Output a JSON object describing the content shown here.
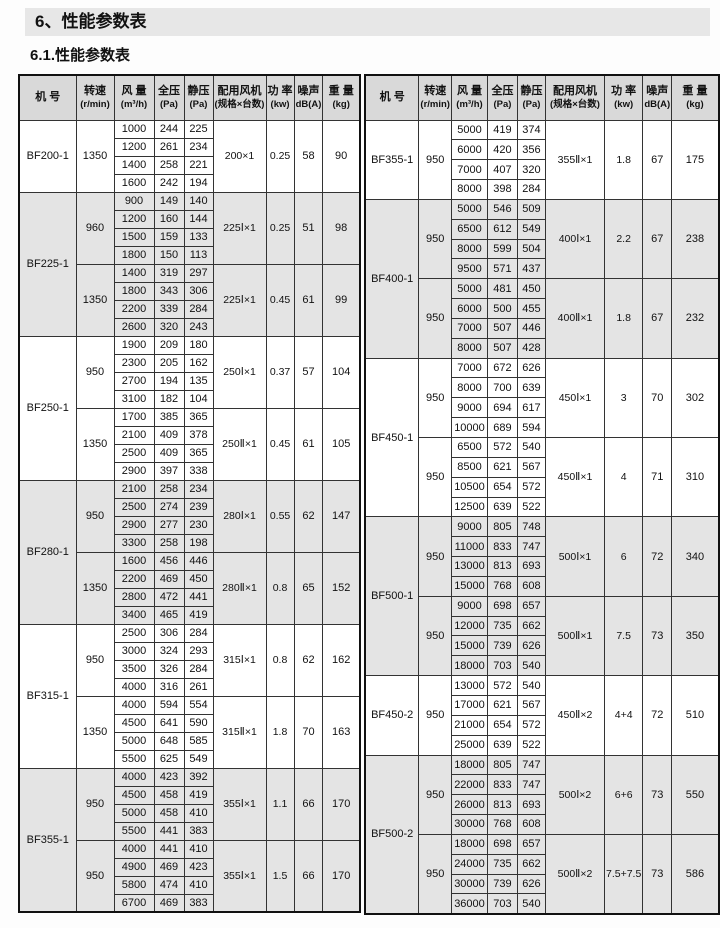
{
  "page": {
    "title": "6、性能参数表",
    "subtitle": "6.1.性能参数表",
    "colors": {
      "title_bar_bg": "#e7e7e7",
      "header_bg": "#d9d9d9",
      "shaded_row_bg": "#e4e4e4"
    }
  },
  "header": [
    {
      "line1": "机 号",
      "line2": ""
    },
    {
      "line1": "转速",
      "line2": "(r/min)"
    },
    {
      "line1": "风 量",
      "line2": "(m³/h)"
    },
    {
      "line1": "全压",
      "line2": "(Pa)"
    },
    {
      "line1": "静压",
      "line2": "(Pa)"
    },
    {
      "line1": "配用风机",
      "line2": "(规格×台数)"
    },
    {
      "line1": "功 率",
      "line2": "(kw)"
    },
    {
      "line1": "噪声",
      "line2": "dB(A)"
    },
    {
      "line1": "重 量",
      "line2": "(kg)"
    }
  ],
  "tables": [
    {
      "name": "left",
      "sections": [
        {
          "model": "BF200-1",
          "shaded": false,
          "groups": [
            {
              "speed": "1350",
              "rows": [
                [
                  "1000",
                  "244",
                  "225"
                ],
                [
                  "1200",
                  "261",
                  "234"
                ],
                [
                  "1400",
                  "258",
                  "221"
                ],
                [
                  "1600",
                  "242",
                  "194"
                ]
              ],
              "fan": "200×1",
              "power": "0.25",
              "noise": "58",
              "weight": "90"
            }
          ]
        },
        {
          "model": "BF225-1",
          "shaded": true,
          "groups": [
            {
              "speed": "960",
              "rows": [
                [
                  "900",
                  "149",
                  "140"
                ],
                [
                  "1200",
                  "160",
                  "144"
                ],
                [
                  "1500",
                  "159",
                  "133"
                ],
                [
                  "1800",
                  "150",
                  "113"
                ]
              ],
              "fan": "225Ⅰ×1",
              "power": "0.25",
              "noise": "51",
              "weight": "98"
            },
            {
              "speed": "1350",
              "rows": [
                [
                  "1400",
                  "319",
                  "297"
                ],
                [
                  "1800",
                  "343",
                  "306"
                ],
                [
                  "2200",
                  "339",
                  "284"
                ],
                [
                  "2600",
                  "320",
                  "243"
                ]
              ],
              "fan": "225Ⅰ×1",
              "power": "0.45",
              "noise": "61",
              "weight": "99"
            }
          ]
        },
        {
          "model": "BF250-1",
          "shaded": false,
          "groups": [
            {
              "speed": "950",
              "rows": [
                [
                  "1900",
                  "209",
                  "180"
                ],
                [
                  "2300",
                  "205",
                  "162"
                ],
                [
                  "2700",
                  "194",
                  "135"
                ],
                [
                  "3100",
                  "182",
                  "104"
                ]
              ],
              "fan": "250Ⅰ×1",
              "power": "0.37",
              "noise": "57",
              "weight": "104"
            },
            {
              "speed": "1350",
              "rows": [
                [
                  "1700",
                  "385",
                  "365"
                ],
                [
                  "2100",
                  "409",
                  "378"
                ],
                [
                  "2500",
                  "409",
                  "365"
                ],
                [
                  "2900",
                  "397",
                  "338"
                ]
              ],
              "fan": "250Ⅱ×1",
              "power": "0.45",
              "noise": "61",
              "weight": "105"
            }
          ]
        },
        {
          "model": "BF280-1",
          "shaded": true,
          "groups": [
            {
              "speed": "950",
              "rows": [
                [
                  "2100",
                  "258",
                  "234"
                ],
                [
                  "2500",
                  "274",
                  "239"
                ],
                [
                  "2900",
                  "277",
                  "230"
                ],
                [
                  "3300",
                  "258",
                  "198"
                ]
              ],
              "fan": "280Ⅰ×1",
              "power": "0.55",
              "noise": "62",
              "weight": "147"
            },
            {
              "speed": "1350",
              "rows": [
                [
                  "1600",
                  "456",
                  "446"
                ],
                [
                  "2200",
                  "469",
                  "450"
                ],
                [
                  "2800",
                  "472",
                  "441"
                ],
                [
                  "3400",
                  "465",
                  "419"
                ]
              ],
              "fan": "280Ⅱ×1",
              "power": "0.8",
              "noise": "65",
              "weight": "152"
            }
          ]
        },
        {
          "model": "BF315-1",
          "shaded": false,
          "groups": [
            {
              "speed": "950",
              "rows": [
                [
                  "2500",
                  "306",
                  "284"
                ],
                [
                  "3000",
                  "324",
                  "293"
                ],
                [
                  "3500",
                  "326",
                  "284"
                ],
                [
                  "4000",
                  "316",
                  "261"
                ]
              ],
              "fan": "315Ⅰ×1",
              "power": "0.8",
              "noise": "62",
              "weight": "162"
            },
            {
              "speed": "1350",
              "rows": [
                [
                  "4000",
                  "594",
                  "554"
                ],
                [
                  "4500",
                  "641",
                  "590"
                ],
                [
                  "5000",
                  "648",
                  "585"
                ],
                [
                  "5500",
                  "625",
                  "549"
                ]
              ],
              "fan": "315Ⅱ×1",
              "power": "1.8",
              "noise": "70",
              "weight": "163"
            }
          ]
        },
        {
          "model": "BF355-1",
          "shaded": true,
          "groups": [
            {
              "speed": "950",
              "rows": [
                [
                  "4000",
                  "423",
                  "392"
                ],
                [
                  "4500",
                  "458",
                  "419"
                ],
                [
                  "5000",
                  "458",
                  "410"
                ],
                [
                  "5500",
                  "441",
                  "383"
                ]
              ],
              "fan": "355Ⅰ×1",
              "power": "1.1",
              "noise": "66",
              "weight": "170"
            },
            {
              "speed": "950",
              "rows": [
                [
                  "4000",
                  "441",
                  "410"
                ],
                [
                  "4900",
                  "469",
                  "423"
                ],
                [
                  "5800",
                  "474",
                  "410"
                ],
                [
                  "6700",
                  "469",
                  "383"
                ]
              ],
              "fan": "355Ⅰ×1",
              "power": "1.5",
              "noise": "66",
              "weight": "170"
            }
          ]
        }
      ]
    },
    {
      "name": "right",
      "sections": [
        {
          "model": "BF355-1",
          "shaded": false,
          "groups": [
            {
              "speed": "950",
              "rows": [
                [
                  "5000",
                  "419",
                  "374"
                ],
                [
                  "6000",
                  "420",
                  "356"
                ],
                [
                  "7000",
                  "407",
                  "320"
                ],
                [
                  "8000",
                  "398",
                  "284"
                ]
              ],
              "fan": "355Ⅱ×1",
              "power": "1.8",
              "noise": "67",
              "weight": "175"
            }
          ]
        },
        {
          "model": "BF400-1",
          "shaded": true,
          "groups": [
            {
              "speed": "950",
              "rows": [
                [
                  "5000",
                  "546",
                  "509"
                ],
                [
                  "6500",
                  "612",
                  "549"
                ],
                [
                  "8000",
                  "599",
                  "504"
                ],
                [
                  "9500",
                  "571",
                  "437"
                ]
              ],
              "fan": "400Ⅰ×1",
              "power": "2.2",
              "noise": "67",
              "weight": "238"
            },
            {
              "speed": "950",
              "rows": [
                [
                  "5000",
                  "481",
                  "450"
                ],
                [
                  "6000",
                  "500",
                  "455"
                ],
                [
                  "7000",
                  "507",
                  "446"
                ],
                [
                  "8000",
                  "507",
                  "428"
                ]
              ],
              "fan": "400Ⅱ×1",
              "power": "1.8",
              "noise": "67",
              "weight": "232"
            }
          ]
        },
        {
          "model": "BF450-1",
          "shaded": false,
          "groups": [
            {
              "speed": "950",
              "rows": [
                [
                  "7000",
                  "672",
                  "626"
                ],
                [
                  "8000",
                  "700",
                  "639"
                ],
                [
                  "9000",
                  "694",
                  "617"
                ],
                [
                  "10000",
                  "689",
                  "594"
                ]
              ],
              "fan": "450Ⅰ×1",
              "power": "3",
              "noise": "70",
              "weight": "302"
            },
            {
              "speed": "950",
              "rows": [
                [
                  "6500",
                  "572",
                  "540"
                ],
                [
                  "8500",
                  "621",
                  "567"
                ],
                [
                  "10500",
                  "654",
                  "572"
                ],
                [
                  "12500",
                  "639",
                  "522"
                ]
              ],
              "fan": "450Ⅱ×1",
              "power": "4",
              "noise": "71",
              "weight": "310"
            }
          ]
        },
        {
          "model": "BF500-1",
          "shaded": true,
          "groups": [
            {
              "speed": "950",
              "rows": [
                [
                  "9000",
                  "805",
                  "748"
                ],
                [
                  "11000",
                  "833",
                  "747"
                ],
                [
                  "13000",
                  "813",
                  "693"
                ],
                [
                  "15000",
                  "768",
                  "608"
                ]
              ],
              "fan": "500Ⅰ×1",
              "power": "6",
              "noise": "72",
              "weight": "340"
            },
            {
              "speed": "950",
              "rows": [
                [
                  "9000",
                  "698",
                  "657"
                ],
                [
                  "12000",
                  "735",
                  "662"
                ],
                [
                  "15000",
                  "739",
                  "626"
                ],
                [
                  "18000",
                  "703",
                  "540"
                ]
              ],
              "fan": "500Ⅱ×1",
              "power": "7.5",
              "noise": "73",
              "weight": "350"
            }
          ]
        },
        {
          "model": "BF450-2",
          "shaded": false,
          "groups": [
            {
              "speed": "950",
              "rows": [
                [
                  "13000",
                  "572",
                  "540"
                ],
                [
                  "17000",
                  "621",
                  "567"
                ],
                [
                  "21000",
                  "654",
                  "572"
                ],
                [
                  "25000",
                  "639",
                  "522"
                ]
              ],
              "fan": "450Ⅱ×2",
              "power": "4+4",
              "noise": "72",
              "weight": "510"
            }
          ]
        },
        {
          "model": "BF500-2",
          "shaded": true,
          "groups": [
            {
              "speed": "950",
              "rows": [
                [
                  "18000",
                  "805",
                  "747"
                ],
                [
                  "22000",
                  "833",
                  "747"
                ],
                [
                  "26000",
                  "813",
                  "693"
                ],
                [
                  "30000",
                  "768",
                  "608"
                ]
              ],
              "fan": "500Ⅰ×2",
              "power": "6+6",
              "noise": "73",
              "weight": "550"
            },
            {
              "speed": "950",
              "rows": [
                [
                  "18000",
                  "698",
                  "657"
                ],
                [
                  "24000",
                  "735",
                  "662"
                ],
                [
                  "30000",
                  "739",
                  "626"
                ],
                [
                  "36000",
                  "703",
                  "540"
                ]
              ],
              "fan": "500Ⅱ×2",
              "power": "7.5+7.5",
              "noise": "73",
              "weight": "586"
            }
          ]
        }
      ]
    }
  ]
}
